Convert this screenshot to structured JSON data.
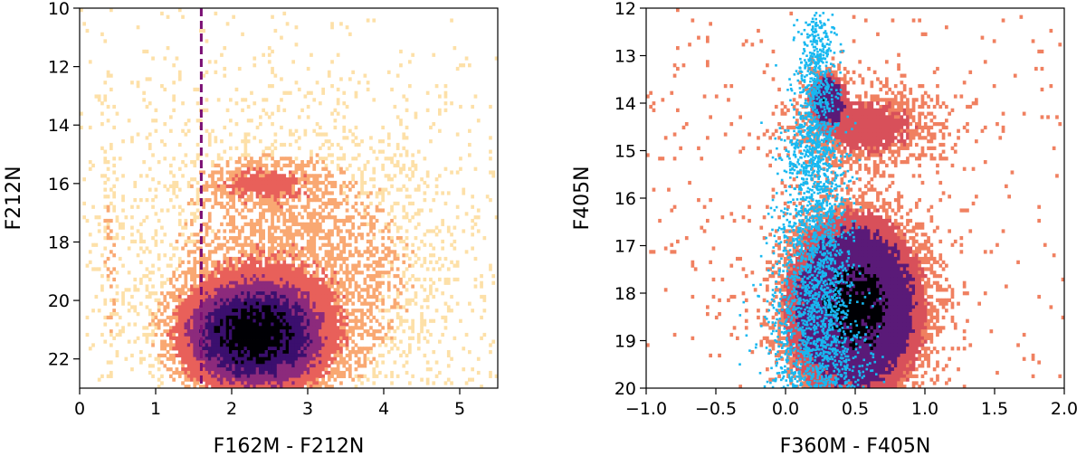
{
  "chart_data": [
    {
      "type": "heatmap",
      "title": "",
      "xlabel": "F162M - F212N",
      "ylabel": "F212N",
      "xlim": [
        0,
        5.5
      ],
      "ylim": [
        23,
        10
      ],
      "y_inverted": true,
      "grid": false,
      "xticks": [
        0,
        1,
        2,
        3,
        4,
        5
      ],
      "xtick_labels": [
        "0",
        "1",
        "2",
        "3",
        "4",
        "5"
      ],
      "yticks": [
        10,
        12,
        14,
        16,
        18,
        20,
        22
      ],
      "ytick_labels": [
        "10",
        "12",
        "14",
        "16",
        "18",
        "20",
        "22"
      ],
      "colormap": "magma_r",
      "colors": {
        "low": "#fde0a8",
        "mid_low": "#f9a872",
        "mid": "#e8605a",
        "mid_high": "#8c2a7c",
        "high": "#3b0f6e",
        "peak": "#000004"
      },
      "density_components": [
        {
          "center": [
            2.3,
            21.2
          ],
          "sigma": [
            0.5,
            1.0
          ],
          "weight": 1.0,
          "label": "main clump"
        },
        {
          "center": [
            2.4,
            16.0
          ],
          "sigma": [
            0.45,
            0.45
          ],
          "weight": 0.12,
          "label": "red clump"
        },
        {
          "center": [
            0.4,
            18.5
          ],
          "sigma": [
            0.08,
            2.5
          ],
          "weight": 0.05,
          "label": "foreground sequence"
        },
        {
          "center": [
            2.8,
            19.0
          ],
          "sigma": [
            1.2,
            3.0
          ],
          "weight": 0.1,
          "label": "broad halo"
        }
      ],
      "annotations": [
        {
          "type": "vline",
          "x": 1.6,
          "style": "dashed",
          "color": "#7a0f74"
        }
      ]
    },
    {
      "type": "heatmap",
      "title": "",
      "xlabel": "F360M - F405N",
      "ylabel": "F405N",
      "xlim": [
        -1.0,
        2.0
      ],
      "ylim": [
        20,
        12
      ],
      "y_inverted": true,
      "grid": false,
      "xticks": [
        -1.0,
        -0.5,
        0.0,
        0.5,
        1.0,
        1.5,
        2.0
      ],
      "xtick_labels": [
        "−1.0",
        "−0.5",
        "0.0",
        "0.5",
        "1.0",
        "1.5",
        "2.0"
      ],
      "yticks": [
        12,
        13,
        14,
        15,
        16,
        17,
        18,
        19,
        20
      ],
      "ytick_labels": [
        "12",
        "13",
        "14",
        "15",
        "16",
        "17",
        "18",
        "19",
        "20"
      ],
      "colormap": "magma_r",
      "colors": {
        "low": "#f08060",
        "mid": "#d8505a",
        "high": "#5a1a78",
        "peak": "#000004",
        "overlay": "#18b8f0"
      },
      "density_components": [
        {
          "center": [
            0.3,
            13.9
          ],
          "sigma": [
            0.07,
            0.3
          ],
          "weight": 0.6,
          "label": "red clump"
        },
        {
          "center": [
            0.5,
            18.3
          ],
          "sigma": [
            0.25,
            1.0
          ],
          "weight": 1.0,
          "label": "main sequence"
        },
        {
          "center": [
            0.6,
            14.5
          ],
          "sigma": [
            0.3,
            0.5
          ],
          "weight": 0.2,
          "label": "extended clump"
        }
      ],
      "overlay_series": {
        "name": "",
        "color": "#18b8f0",
        "ridge": [
          {
            "y": 12.0,
            "x": 0.22
          },
          {
            "y": 14.0,
            "x": 0.2
          },
          {
            "y": 16.0,
            "x": 0.2
          },
          {
            "y": 18.0,
            "x": 0.2
          },
          {
            "y": 19.5,
            "x": 0.25
          }
        ]
      }
    }
  ]
}
